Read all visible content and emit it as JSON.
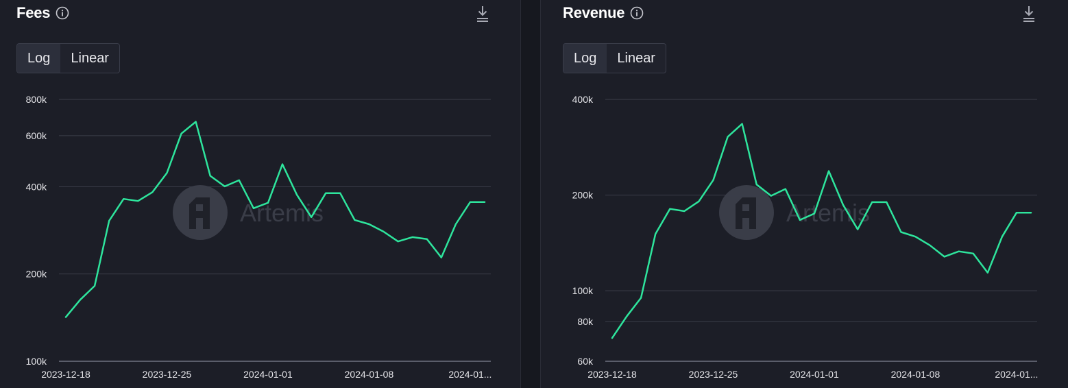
{
  "colors": {
    "background": "#1c1e27",
    "line": "#2ee59d",
    "grid": "#3b3e4a",
    "watermark": "#3a3d48"
  },
  "icons": {
    "info": "info-circle-icon",
    "download": "download-icon",
    "watermark_logo": "artemis-logo-icon"
  },
  "watermark": "Artemis",
  "panels": [
    {
      "title": "Fees",
      "toggle": {
        "options": [
          "Log",
          "Linear"
        ],
        "selected": "Log"
      }
    },
    {
      "title": "Revenue",
      "toggle": {
        "options": [
          "Log",
          "Linear"
        ],
        "selected": "Log"
      }
    }
  ],
  "chart_data": [
    {
      "type": "line",
      "title": "Fees",
      "yscale": "log",
      "ylim": [
        100000,
        800000
      ],
      "yticks": [
        100000,
        200000,
        400000,
        600000,
        800000
      ],
      "yticklabels": [
        "100k",
        "200k",
        "400k",
        "600k",
        "800k"
      ],
      "xticks": [
        "2023-12-18",
        "2023-12-25",
        "2024-01-01",
        "2024-01-08",
        "2024-01..."
      ],
      "x": [
        "2023-12-18",
        "2023-12-19",
        "2023-12-20",
        "2023-12-21",
        "2023-12-22",
        "2023-12-23",
        "2023-12-24",
        "2023-12-25",
        "2023-12-26",
        "2023-12-27",
        "2023-12-28",
        "2023-12-29",
        "2023-12-30",
        "2023-12-31",
        "2024-01-01",
        "2024-01-02",
        "2024-01-03",
        "2024-01-04",
        "2024-01-05",
        "2024-01-06",
        "2024-01-07",
        "2024-01-08",
        "2024-01-09",
        "2024-01-10",
        "2024-01-11",
        "2024-01-12",
        "2024-01-13",
        "2024-01-14",
        "2024-01-15",
        "2024-01-16"
      ],
      "series": [
        {
          "values": [
            142000,
            163000,
            182000,
            305000,
            363000,
            357000,
            383000,
            446000,
            610000,
            670000,
            436000,
            401000,
            421000,
            337000,
            352000,
            478000,
            375000,
            314000,
            380000,
            380000,
            307000,
            297000,
            280000,
            259000,
            268000,
            264000,
            228000,
            297000,
            354000,
            354000
          ]
        }
      ]
    },
    {
      "type": "line",
      "title": "Revenue",
      "yscale": "log",
      "ylim": [
        60000,
        400000
      ],
      "yticks": [
        60000,
        80000,
        100000,
        200000,
        400000
      ],
      "yticklabels": [
        "60k",
        "80k",
        "100k",
        "200k",
        "400k"
      ],
      "xticks": [
        "2023-12-18",
        "2023-12-25",
        "2024-01-01",
        "2024-01-08",
        "2024-01..."
      ],
      "x": [
        "2023-12-18",
        "2023-12-19",
        "2023-12-20",
        "2023-12-21",
        "2023-12-22",
        "2023-12-23",
        "2023-12-24",
        "2023-12-25",
        "2023-12-26",
        "2023-12-27",
        "2023-12-28",
        "2023-12-29",
        "2023-12-30",
        "2023-12-31",
        "2024-01-01",
        "2024-01-02",
        "2024-01-03",
        "2024-01-04",
        "2024-01-05",
        "2024-01-06",
        "2024-01-07",
        "2024-01-08",
        "2024-01-09",
        "2024-01-10",
        "2024-01-11",
        "2024-01-12",
        "2024-01-13",
        "2024-01-14",
        "2024-01-15",
        "2024-01-16"
      ],
      "series": [
        {
          "values": [
            71000,
            83000,
            95000,
            151000,
            181000,
            178000,
            191000,
            223000,
            305000,
            335000,
            216000,
            199000,
            209000,
            167000,
            175000,
            238000,
            186000,
            156000,
            190000,
            190000,
            153000,
            148000,
            139000,
            128000,
            133000,
            131000,
            114000,
            148000,
            176000,
            176000
          ]
        }
      ]
    }
  ]
}
